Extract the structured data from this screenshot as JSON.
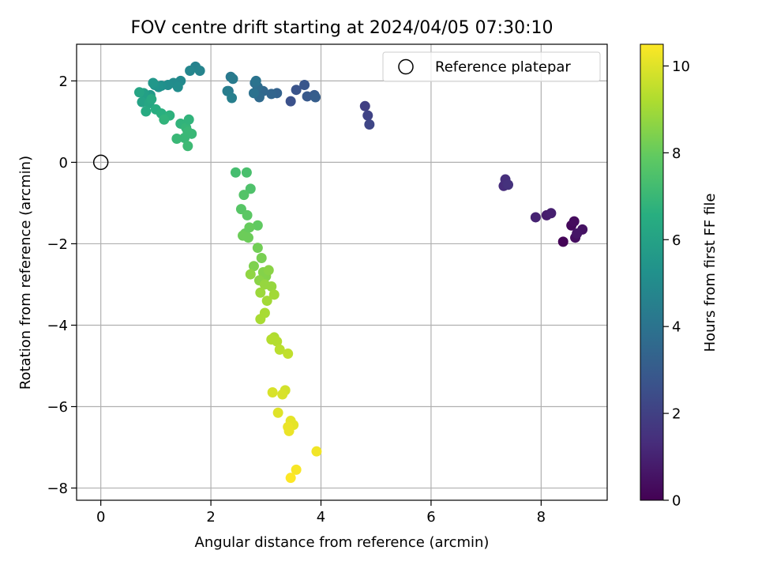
{
  "chart_data": {
    "type": "scatter",
    "title": "FOV centre drift starting at 2024/04/05 07:30:10",
    "xlabel": "Angular distance from reference (arcmin)",
    "ylabel": "Rotation from reference (arcmin)",
    "xlim": [
      -0.44,
      9.2
    ],
    "ylim": [
      -8.3,
      2.9
    ],
    "xticks": [
      0,
      2,
      4,
      6,
      8
    ],
    "yticks": [
      -8,
      -6,
      -4,
      -2,
      0,
      2
    ],
    "grid": true,
    "legend": {
      "placement": "top-right",
      "entries": [
        "Reference platepar"
      ]
    },
    "reference_point": {
      "x": 0,
      "y": 0,
      "label": "Reference platepar"
    },
    "colorbar": {
      "label": "Hours from first FF file",
      "colormap": "viridis",
      "range": [
        0,
        10.5
      ],
      "ticks": [
        0,
        2,
        4,
        6,
        8,
        10
      ]
    },
    "series": [
      {
        "x": [
          8.4,
          8.55,
          8.6,
          8.62,
          8.75,
          8.65,
          8.1,
          8.18,
          7.9,
          7.32,
          7.35,
          7.4,
          4.8,
          4.85,
          4.88,
          3.45,
          3.55,
          3.7,
          3.75,
          3.88,
          3.9,
          3.2,
          3.1,
          2.95,
          2.88,
          2.85,
          2.8,
          2.78,
          2.82,
          2.32,
          2.36,
          2.4,
          2.3,
          2.38,
          1.72,
          1.8,
          1.62,
          1.45,
          1.32,
          1.22,
          1.1,
          1.05,
          0.98,
          0.95,
          0.9,
          0.85,
          0.8,
          0.78,
          0.75,
          0.7,
          0.88,
          0.92,
          0.82,
          1.0,
          1.1,
          1.25,
          1.15,
          1.4,
          1.45,
          1.55,
          1.58,
          1.52,
          1.6,
          1.38,
          1.58,
          1.65,
          2.45,
          2.65,
          2.72,
          2.6,
          2.55,
          2.66,
          2.85,
          2.7,
          2.62,
          2.68,
          2.58,
          2.85,
          2.92,
          2.78,
          2.95,
          3.0,
          2.88,
          3.05,
          2.72,
          3.1,
          2.98,
          2.9,
          3.02,
          3.15,
          2.98,
          2.9,
          3.15,
          3.2,
          3.1,
          3.25,
          3.4,
          3.35,
          3.3,
          3.12,
          3.22,
          3.5,
          3.45,
          3.4,
          3.42,
          3.92,
          3.55,
          3.45
        ],
        "y": [
          -1.95,
          -1.55,
          -1.45,
          -1.85,
          -1.65,
          -1.75,
          -1.3,
          -1.25,
          -1.35,
          -0.58,
          -0.42,
          -0.55,
          1.38,
          1.15,
          0.93,
          1.5,
          1.78,
          1.9,
          1.62,
          1.65,
          1.6,
          1.7,
          1.68,
          1.75,
          1.6,
          1.85,
          1.95,
          1.7,
          2.0,
          1.75,
          2.1,
          2.05,
          1.75,
          1.58,
          2.35,
          2.25,
          2.25,
          2.0,
          1.95,
          1.9,
          1.88,
          1.85,
          1.9,
          1.95,
          1.65,
          1.6,
          1.55,
          1.7,
          1.48,
          1.72,
          1.45,
          1.55,
          1.25,
          1.3,
          1.2,
          1.15,
          1.05,
          1.85,
          0.95,
          0.85,
          0.75,
          0.6,
          1.05,
          0.58,
          0.4,
          0.7,
          -0.25,
          -0.25,
          -0.65,
          -0.8,
          -1.15,
          -1.3,
          -1.55,
          -1.6,
          -1.75,
          -1.85,
          -1.8,
          -2.1,
          -2.35,
          -2.55,
          -2.7,
          -2.8,
          -2.9,
          -2.65,
          -2.75,
          -3.05,
          -3.0,
          -3.2,
          -3.4,
          -3.25,
          -3.7,
          -3.85,
          -4.3,
          -4.4,
          -4.35,
          -4.6,
          -4.7,
          -5.6,
          -5.7,
          -5.65,
          -6.15,
          -6.45,
          -6.35,
          -6.5,
          -6.6,
          -7.1,
          -7.55,
          -7.75
        ],
        "hours": [
          0.1,
          0.2,
          0.3,
          0.4,
          0.5,
          0.6,
          0.8,
          0.9,
          1.0,
          1.3,
          1.4,
          1.5,
          2.0,
          2.1,
          2.2,
          2.6,
          2.7,
          2.8,
          2.9,
          3.0,
          3.1,
          3.3,
          3.4,
          3.5,
          3.6,
          3.7,
          3.8,
          3.9,
          4.0,
          4.1,
          4.2,
          4.3,
          4.4,
          4.5,
          4.6,
          4.7,
          4.8,
          4.9,
          5.0,
          5.1,
          5.2,
          5.3,
          5.4,
          5.5,
          5.6,
          5.7,
          5.8,
          5.9,
          6.0,
          6.1,
          6.2,
          6.3,
          6.4,
          6.5,
          6.6,
          6.7,
          6.8,
          5.1,
          6.8,
          6.9,
          7.0,
          7.0,
          6.8,
          7.0,
          7.1,
          7.0,
          7.3,
          7.4,
          7.5,
          7.6,
          7.7,
          7.8,
          7.9,
          8.0,
          8.0,
          8.1,
          8.1,
          8.2,
          8.3,
          8.4,
          8.5,
          8.5,
          8.6,
          8.6,
          8.7,
          8.8,
          8.8,
          8.9,
          9.0,
          9.0,
          9.1,
          9.1,
          9.2,
          9.3,
          9.3,
          9.4,
          9.5,
          9.8,
          9.9,
          9.9,
          10.0,
          10.1,
          10.1,
          10.2,
          10.2,
          10.3,
          10.4,
          10.5
        ]
      }
    ]
  }
}
